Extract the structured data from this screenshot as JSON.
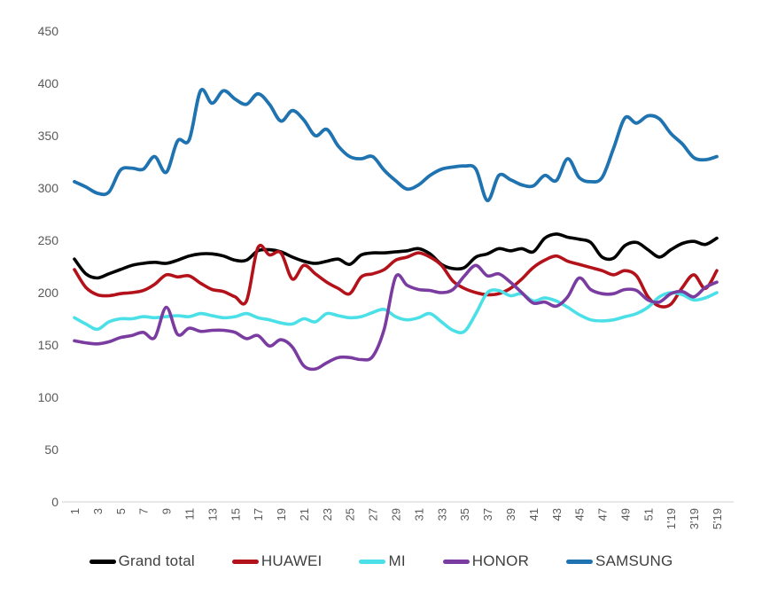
{
  "chart_data": {
    "type": "line",
    "title": "",
    "xlabel": "",
    "ylabel": "",
    "ylim": [
      0,
      450
    ],
    "grid": false,
    "legend_position": "bottom",
    "axis_text_color": "#595959",
    "axis_line_color": "#d9d9d9",
    "background_color": "#ffffff",
    "y_ticks": [
      450,
      400,
      350,
      300,
      250,
      200,
      150,
      100,
      50,
      0
    ],
    "x_tick_labels": [
      "1",
      "3",
      "5",
      "7",
      "9",
      "11",
      "13",
      "15",
      "17",
      "19",
      "21",
      "23",
      "25",
      "27",
      "29",
      "31",
      "33",
      "35",
      "37",
      "39",
      "41",
      "43",
      "45",
      "47",
      "49",
      "51",
      "1'19",
      "3'19",
      "5'19"
    ],
    "x_points_per_label": 2,
    "n_points": 57,
    "series": [
      {
        "name": "Grand total",
        "color": "#000000",
        "values": [
          232,
          218,
          214,
          218,
          222,
          226,
          228,
          229,
          228,
          231,
          235,
          237,
          237,
          235,
          231,
          231,
          240,
          241,
          239,
          234,
          230,
          228,
          230,
          232,
          227,
          236,
          238,
          238,
          239,
          240,
          242,
          237,
          227,
          223,
          224,
          234,
          237,
          242,
          240,
          242,
          239,
          252,
          256,
          253,
          251,
          248,
          234,
          233,
          245,
          248,
          241,
          234,
          241,
          247,
          249,
          246,
          252
        ]
      },
      {
        "name": "HUAWEI",
        "color": "#b4121a",
        "values": [
          222,
          205,
          198,
          197,
          199,
          200,
          202,
          208,
          217,
          215,
          216,
          209,
          203,
          201,
          196,
          192,
          243,
          236,
          238,
          213,
          226,
          218,
          210,
          204,
          199,
          215,
          218,
          222,
          231,
          234,
          238,
          234,
          226,
          211,
          204,
          200,
          198,
          199,
          204,
          213,
          224,
          231,
          235,
          230,
          227,
          224,
          221,
          217,
          221,
          216,
          196,
          187,
          189,
          205,
          217,
          204,
          221
        ]
      },
      {
        "name": "MI",
        "color": "#4be0e8",
        "values": [
          176,
          170,
          165,
          172,
          175,
          175,
          177,
          176,
          177,
          178,
          177,
          180,
          178,
          176,
          177,
          180,
          176,
          174,
          171,
          170,
          175,
          172,
          180,
          178,
          176,
          177,
          181,
          184,
          177,
          174,
          176,
          180,
          172,
          164,
          163,
          180,
          200,
          202,
          197,
          199,
          192,
          195,
          192,
          186,
          179,
          174,
          173,
          174,
          177,
          180,
          186,
          196,
          200,
          198,
          193,
          195,
          200
        ]
      },
      {
        "name": "HONOR",
        "color": "#7a3ca0",
        "values": [
          154,
          152,
          151,
          153,
          157,
          159,
          162,
          157,
          186,
          160,
          166,
          163,
          164,
          164,
          162,
          156,
          159,
          149,
          155,
          148,
          130,
          127,
          133,
          138,
          138,
          136,
          139,
          165,
          215,
          207,
          203,
          202,
          200,
          203,
          216,
          226,
          216,
          218,
          210,
          200,
          190,
          191,
          187,
          196,
          214,
          203,
          199,
          199,
          203,
          202,
          193,
          191,
          199,
          201,
          196,
          205,
          210
        ]
      },
      {
        "name": "SAMSUNG",
        "color": "#1e73b0",
        "values": [
          306,
          301,
          295,
          296,
          317,
          319,
          318,
          330,
          315,
          345,
          346,
          393,
          381,
          393,
          385,
          380,
          390,
          380,
          364,
          374,
          365,
          350,
          356,
          340,
          330,
          328,
          330,
          317,
          307,
          299,
          303,
          312,
          318,
          320,
          321,
          318,
          288,
          312,
          308,
          303,
          302,
          312,
          307,
          328,
          310,
          306,
          310,
          338,
          367,
          362,
          369,
          366,
          352,
          342,
          329,
          327,
          330
        ]
      }
    ]
  }
}
